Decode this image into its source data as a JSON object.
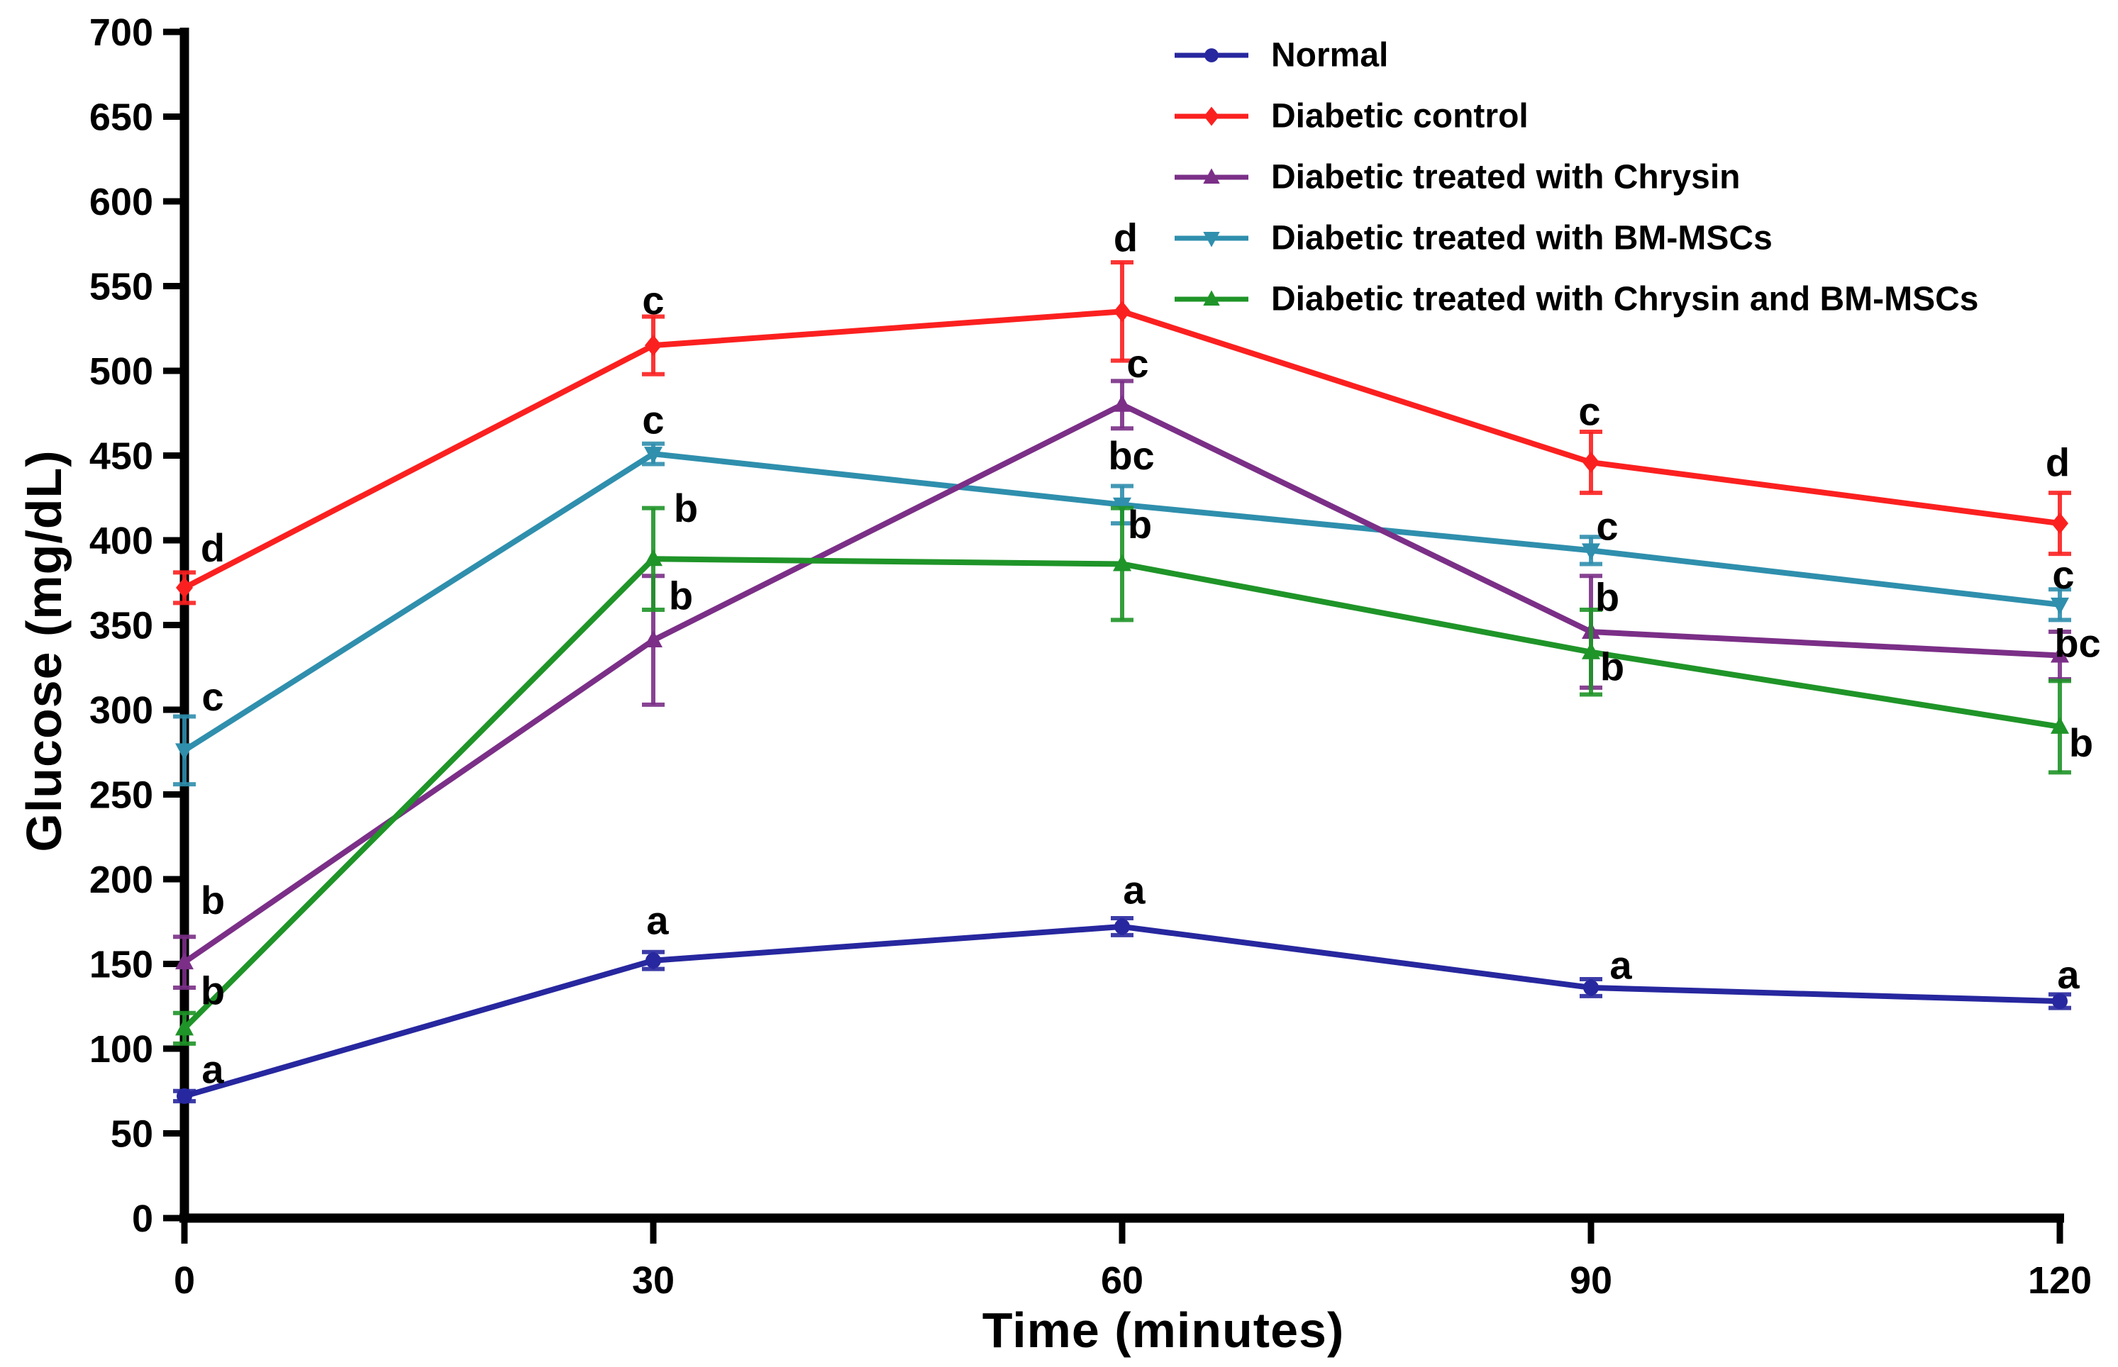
{
  "chart_data": {
    "type": "line",
    "title": "",
    "xlabel": "Time (minutes)",
    "ylabel": "Glucose (mg/dL)",
    "x": [
      0,
      30,
      60,
      90,
      120
    ],
    "x_ticks": [
      "0",
      "30",
      "60",
      "90",
      "120"
    ],
    "y_ticks": [
      0,
      50,
      100,
      150,
      200,
      250,
      300,
      350,
      400,
      450,
      500,
      550,
      600,
      650,
      700
    ],
    "xlim": [
      0,
      120
    ],
    "ylim": [
      0,
      700
    ],
    "grid": false,
    "legend_position": "top-right",
    "axis_color": "#000000",
    "text_color": "#000000",
    "background_color": "#ffffff",
    "series": [
      {
        "name": "Normal",
        "color": "#27279f",
        "marker": "circle",
        "values": [
          72,
          152,
          172,
          136,
          128
        ],
        "errors": [
          3,
          5,
          5,
          5,
          4
        ],
        "sig": [
          {
            "label": "a",
            "dx": 40,
            "dy": -13
          },
          {
            "label": "a",
            "dx": 6,
            "dy": -27
          },
          {
            "label": "a",
            "dx": 17,
            "dy": -22
          },
          {
            "label": "a",
            "dx": 42,
            "dy": -2
          },
          {
            "label": "a",
            "dx": 12,
            "dy": -10
          }
        ]
      },
      {
        "name": "Diabetic control",
        "color": "#fb2020",
        "marker": "diamond",
        "values": [
          372,
          515,
          535,
          446,
          410
        ],
        "errors": [
          9,
          17,
          29,
          18,
          18
        ],
        "sig": [
          {
            "label": "d",
            "dx": 40,
            "dy": -17
          },
          {
            "label": "c",
            "dx": 0,
            "dy": -5
          },
          {
            "label": "d",
            "dx": 5,
            "dy": -17
          },
          {
            "label": "c",
            "dx": -2,
            "dy": -11
          },
          {
            "label": "d",
            "dx": -3,
            "dy": -25
          }
        ]
      },
      {
        "name": "Diabetic treated with Chrysin",
        "color": "#7b2f87",
        "marker": "triangle",
        "values": [
          151,
          341,
          480,
          346,
          332
        ],
        "errors": [
          15,
          38,
          14,
          33,
          14
        ],
        "sig": [
          {
            "label": "b",
            "dx": 40,
            "dy": -34
          },
          {
            "label": "b",
            "dx": 39,
            "dy": 46
          },
          {
            "label": "c",
            "dx": 22,
            "dy": -7
          },
          {
            "label": "b",
            "dx": 23,
            "dy": 48
          },
          {
            "label": "bc",
            "dx": 25,
            "dy": 34
          }
        ]
      },
      {
        "name": "Diabetic treated with BM-MSCs",
        "color": "#2f8fad",
        "marker": "triangle-down",
        "values": [
          276,
          451,
          421,
          394,
          362
        ],
        "errors": [
          20,
          6,
          11,
          8,
          9
        ],
        "sig": [
          {
            "label": "c",
            "dx": 40,
            "dy": -10
          },
          {
            "label": "c",
            "dx": 0,
            "dy": -16
          },
          {
            "label": "bc",
            "dx": 13,
            "dy": -25
          },
          {
            "label": "c",
            "dx": 23,
            "dy": 3
          },
          {
            "label": "c",
            "dx": 5,
            "dy": -3
          }
        ]
      },
      {
        "name": "Diabetic treated with Chrysin and BM-MSCs",
        "color": "#1f9428",
        "marker": "triangle",
        "values": [
          112,
          389,
          386,
          334,
          290
        ],
        "errors": [
          9,
          30,
          33,
          25,
          27
        ],
        "sig": [
          {
            "label": "b",
            "dx": 40,
            "dy": -14
          },
          {
            "label": "b",
            "dx": 46,
            "dy": 18
          },
          {
            "label": "b",
            "dx": 25,
            "dy": 41
          },
          {
            "label": "b",
            "dx": 30,
            "dy": 98
          },
          {
            "label": "b",
            "dx": 30,
            "dy": 105
          }
        ]
      }
    ]
  }
}
